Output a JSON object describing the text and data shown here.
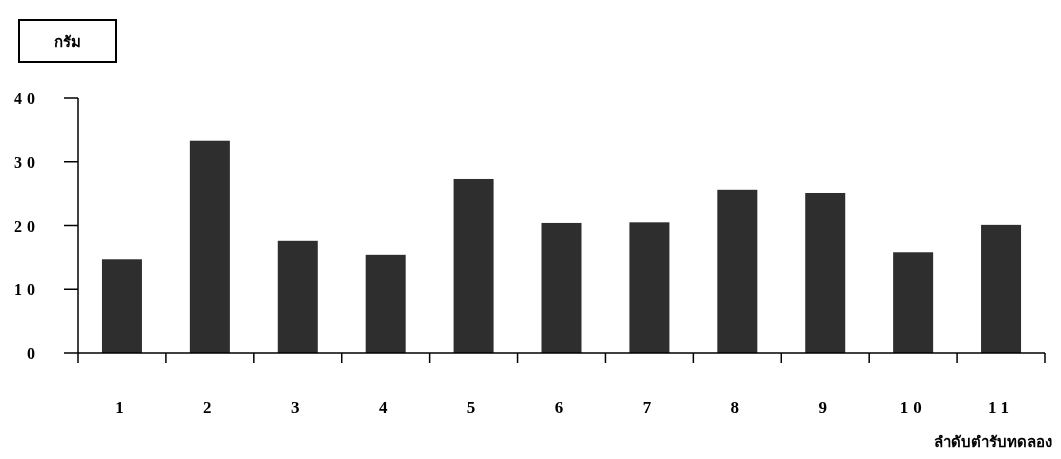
{
  "chart_data": {
    "type": "bar",
    "ylabel": "กรัม",
    "xlabel": "ลำดับตำรับทดลอง",
    "categories": [
      "1",
      "2",
      "3",
      "4",
      "5",
      "6",
      "7",
      "8",
      "9",
      "10",
      "11"
    ],
    "values": [
      14.7,
      33.3,
      17.6,
      15.4,
      27.3,
      20.4,
      20.5,
      25.6,
      25.1,
      15.8,
      20.1
    ],
    "color": "#2e2e2e",
    "ylim": [
      0,
      40
    ],
    "yticks": [
      0,
      10,
      20,
      30,
      40
    ],
    "grid": false
  }
}
